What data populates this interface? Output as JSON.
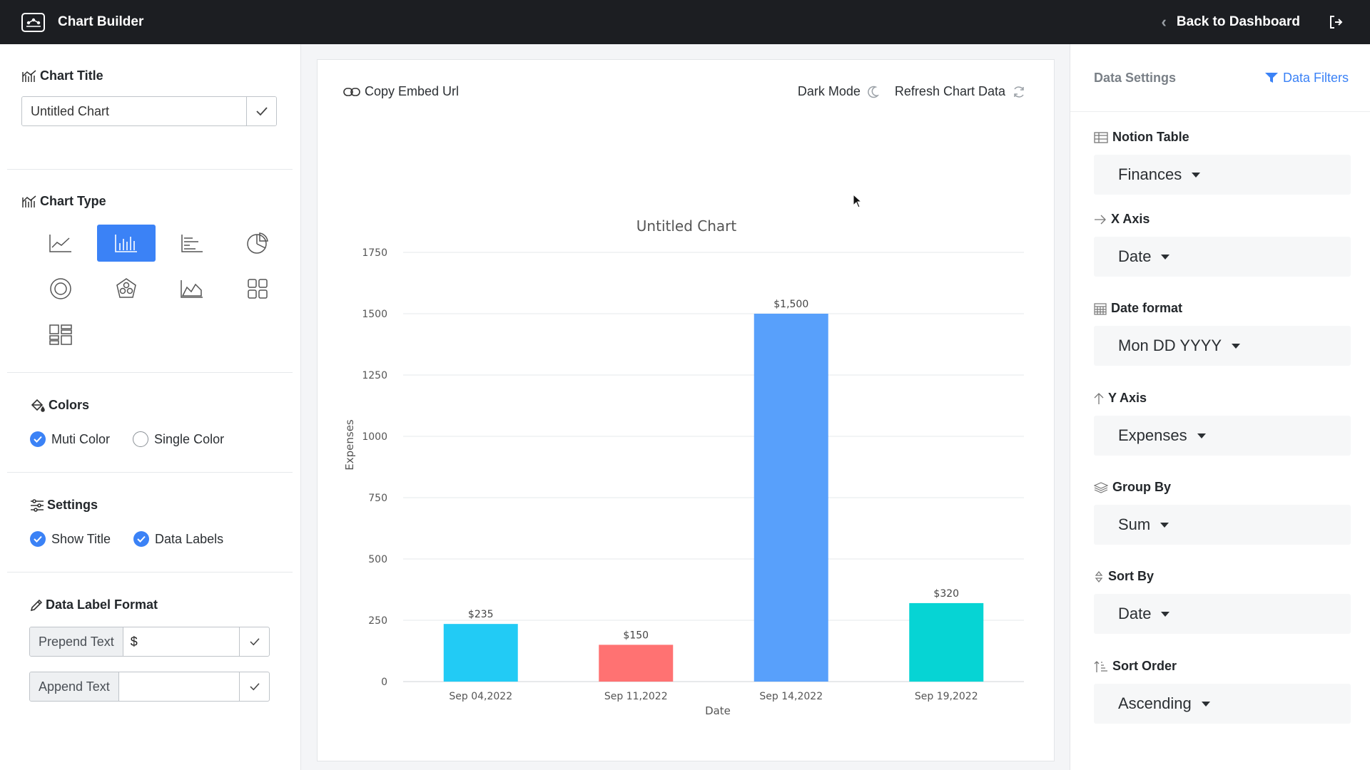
{
  "app": {
    "title": "Chart Builder",
    "back_label": "Back to Dashboard"
  },
  "left": {
    "chart_title": {
      "heading": "Chart Title",
      "value": "Untitled Chart"
    },
    "chart_type": {
      "heading": "Chart Type",
      "selected": "bar"
    },
    "colors": {
      "heading": "Colors",
      "multi": "Muti Color",
      "single": "Single Color",
      "selected": "multi"
    },
    "settings": {
      "heading": "Settings",
      "show_title": "Show Title",
      "data_labels": "Data Labels"
    },
    "label_format": {
      "heading": "Data Label Format",
      "prepend_label": "Prepend Text",
      "prepend_value": "$",
      "append_label": "Append Text",
      "append_value": ""
    }
  },
  "toolbar": {
    "copy_embed": "Copy Embed Url",
    "dark_mode": "Dark Mode",
    "refresh": "Refresh Chart Data"
  },
  "chart_data": {
    "type": "bar",
    "title": "Untitled Chart",
    "xlabel": "Date",
    "ylabel": "Expenses",
    "categories": [
      "Sep 04,2022",
      "Sep 11,2022",
      "Sep 14,2022",
      "Sep 19,2022"
    ],
    "values": [
      235,
      150,
      1500,
      320
    ],
    "labels": [
      "$235",
      "$150",
      "$1,500",
      "$320"
    ],
    "colors": [
      "#22cbf5",
      "#ff7272",
      "#58a0fb",
      "#06d4d4"
    ],
    "ylim": [
      0,
      1750
    ],
    "yticks": [
      0,
      250,
      500,
      750,
      1000,
      1250,
      1500,
      1750
    ],
    "grid": true
  },
  "right": {
    "title": "Data Settings",
    "filters": "Data Filters",
    "fields": [
      {
        "label": "Notion Table",
        "value": "Finances"
      },
      {
        "label": "X Axis",
        "value": "Date"
      },
      {
        "label": "Date format",
        "value": "Mon DD YYYY"
      },
      {
        "label": "Y Axis",
        "value": "Expenses"
      },
      {
        "label": "Group By",
        "value": "Sum"
      },
      {
        "label": "Sort By",
        "value": "Date"
      },
      {
        "label": "Sort Order",
        "value": "Ascending"
      }
    ]
  }
}
